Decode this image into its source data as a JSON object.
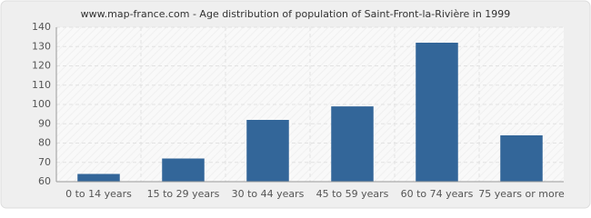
{
  "chart_data": {
    "type": "bar",
    "title": "www.map-france.com - Age distribution of population of Saint-Front-la-Rivière in 1999",
    "categories": [
      "0 to 14 years",
      "15 to 29 years",
      "30 to 44 years",
      "45 to 59 years",
      "60 to 74 years",
      "75 years or more"
    ],
    "values": [
      64,
      72,
      92,
      99,
      132,
      84
    ],
    "color": "#336699",
    "ylim": [
      60,
      140
    ],
    "yticks": [
      60,
      70,
      80,
      90,
      100,
      110,
      120,
      130,
      140
    ],
    "grid": true
  }
}
